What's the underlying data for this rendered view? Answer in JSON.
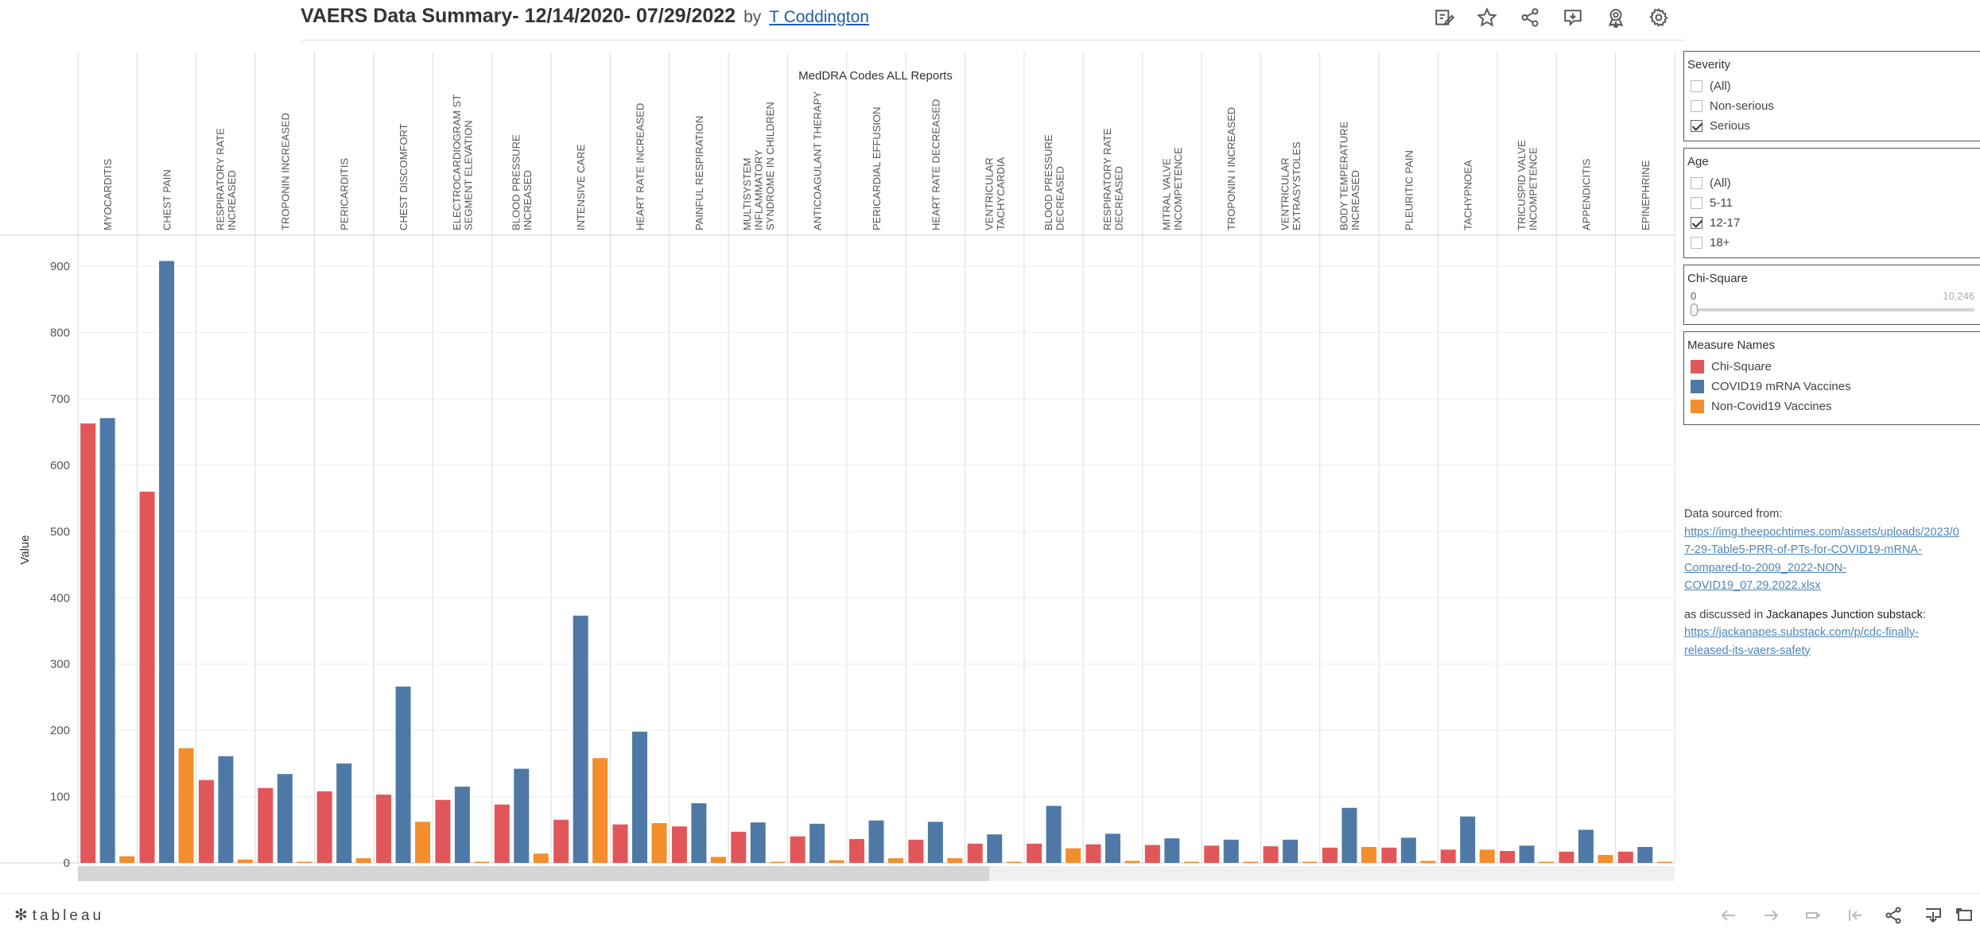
{
  "header": {
    "title": "VAERS Data Summary- 12/14/2020- 07/29/2022",
    "by": "by",
    "author": "T Coddington"
  },
  "toolbar": [
    "edit-icon",
    "star-icon",
    "share-icon",
    "comment-icon",
    "subscribe-icon",
    "gear-icon"
  ],
  "chart_data": {
    "type": "bar",
    "title": "MedDRA Codes ALL Reports",
    "ylabel": "Value",
    "ylim": [
      0,
      950
    ],
    "yticks": [
      0,
      100,
      200,
      300,
      400,
      500,
      600,
      700,
      800,
      900
    ],
    "grid": true,
    "categories": [
      "MYOCARDITIS",
      "CHEST PAIN",
      "RESPIRATORY RATE INCREASED",
      "TROPONIN INCREASED",
      "PERICARDITIS",
      "CHEST DISCOMFORT",
      "ELECTROCARDIOGRAM ST SEGMENT ELEVATION",
      "BLOOD PRESSURE INCREASED",
      "INTENSIVE CARE",
      "HEART RATE INCREASED",
      "PAINFUL RESPIRATION",
      "MULTISYSTEM INFLAMMATORY SYNDROME IN CHILDREN",
      "ANTICOAGULANT THERAPY",
      "PERICARDIAL EFFUSION",
      "HEART RATE DECREASED",
      "VENTRICULAR TACHYCARDIA",
      "BLOOD PRESSURE DECREASED",
      "RESPIRATORY RATE DECREASED",
      "MITRAL VALVE INCOMPETENCE",
      "TROPONIN I INCREASED",
      "VENTRICULAR EXTRASYSTOLES",
      "BODY TEMPERATURE INCREASED",
      "PLEURITIC PAIN",
      "TACHYPNOEA",
      "TRICUSPID VALVE INCOMPETENCE",
      "APPENDICITIS",
      "EPINEPHRINE"
    ],
    "category_lines": [
      [
        "MYOCARDITIS"
      ],
      [
        "CHEST PAIN"
      ],
      [
        "RESPIRATORY RATE",
        "INCREASED"
      ],
      [
        "TROPONIN INCREASED"
      ],
      [
        "PERICARDITIS"
      ],
      [
        "CHEST DISCOMFORT"
      ],
      [
        "ELECTROCARDIOGRAM ST",
        "SEGMENT ELEVATION"
      ],
      [
        "BLOOD PRESSURE",
        "INCREASED"
      ],
      [
        "INTENSIVE CARE"
      ],
      [
        "HEART RATE INCREASED"
      ],
      [
        "PAINFUL RESPIRATION"
      ],
      [
        "MULTISYSTEM",
        "INFLAMMATORY",
        "SYNDROME IN CHILDREN"
      ],
      [
        "ANTICOAGULANT THERAPY"
      ],
      [
        "PERICARDIAL EFFUSION"
      ],
      [
        "HEART RATE DECREASED"
      ],
      [
        "VENTRICULAR",
        "TACHYCARDIA"
      ],
      [
        "BLOOD PRESSURE",
        "DECREASED"
      ],
      [
        "RESPIRATORY RATE",
        "DECREASED"
      ],
      [
        "MITRAL VALVE",
        "INCOMPETENCE"
      ],
      [
        "TROPONIN I INCREASED"
      ],
      [
        "VENTRICULAR",
        "EXTRASYSTOLES"
      ],
      [
        "BODY TEMPERATURE",
        "INCREASED"
      ],
      [
        "PLEURITIC PAIN"
      ],
      [
        "TACHYPNOEA"
      ],
      [
        "TRICUSPID VALVE",
        "INCOMPETENCE"
      ],
      [
        "APPENDICITIS"
      ],
      [
        "EPINEPHRINE"
      ]
    ],
    "series": [
      {
        "name": "Chi-Square",
        "color": "#e15759",
        "values": [
          663,
          560,
          125,
          113,
          108,
          103,
          95,
          88,
          65,
          58,
          55,
          47,
          40,
          36,
          35,
          29,
          29,
          28,
          27,
          26,
          25,
          23,
          23,
          20,
          18,
          17,
          17
        ]
      },
      {
        "name": "COVID19 mRNA Vaccines",
        "color": "#4e79a7",
        "values": [
          671,
          908,
          161,
          134,
          150,
          266,
          115,
          142,
          373,
          198,
          90,
          61,
          59,
          64,
          62,
          43,
          86,
          44,
          37,
          35,
          35,
          83,
          38,
          70,
          26,
          50,
          24
        ]
      },
      {
        "name": "Non-Covid19 Vaccines",
        "color": "#f28e2b",
        "values": [
          10,
          173,
          5,
          1,
          7,
          62,
          1,
          14,
          158,
          60,
          9,
          1,
          4,
          7,
          7,
          1,
          22,
          3,
          1,
          1,
          1,
          24,
          3,
          20,
          1,
          12,
          1
        ]
      }
    ]
  },
  "filters": {
    "severity": {
      "title": "Severity",
      "options": [
        {
          "label": "(All)",
          "checked": false
        },
        {
          "label": "Non-serious",
          "checked": false
        },
        {
          "label": "Serious",
          "checked": true
        }
      ]
    },
    "age": {
      "title": "Age",
      "options": [
        {
          "label": "(All)",
          "checked": false
        },
        {
          "label": "5-11",
          "checked": false
        },
        {
          "label": "12-17",
          "checked": true
        },
        {
          "label": "18+",
          "checked": false
        }
      ]
    },
    "chisq": {
      "title": "Chi-Square",
      "min": "0",
      "max": "10,246"
    }
  },
  "legend": {
    "title": "Measure Names",
    "items": [
      {
        "label": "Chi-Square",
        "color": "#e15759"
      },
      {
        "label": "COVID19 mRNA Vaccines",
        "color": "#4e79a7"
      },
      {
        "label": "Non-Covid19 Vaccines",
        "color": "#f28e2b"
      }
    ]
  },
  "source": {
    "heading": "Data sourced from:",
    "link1_lines": [
      "https://img.theepochtimes.com/assets/uploads/2023/0",
      "7-29-Table5-PRR-of-PTs-for-COVID19-mRNA-",
      "Compared-to-2009_2022-NON-",
      "COVID19_07.29.2022.xlsx"
    ],
    "discussed_prefix": "as discussed in ",
    "discussed_name": "Jackanapes Junction substack",
    "discussed_suffix": ":",
    "link2_lines": [
      "https://jackanapes.substack.com/p/cdc-finally-",
      "released-its-vaers-safety"
    ]
  },
  "footer": {
    "logo": "tableau"
  }
}
